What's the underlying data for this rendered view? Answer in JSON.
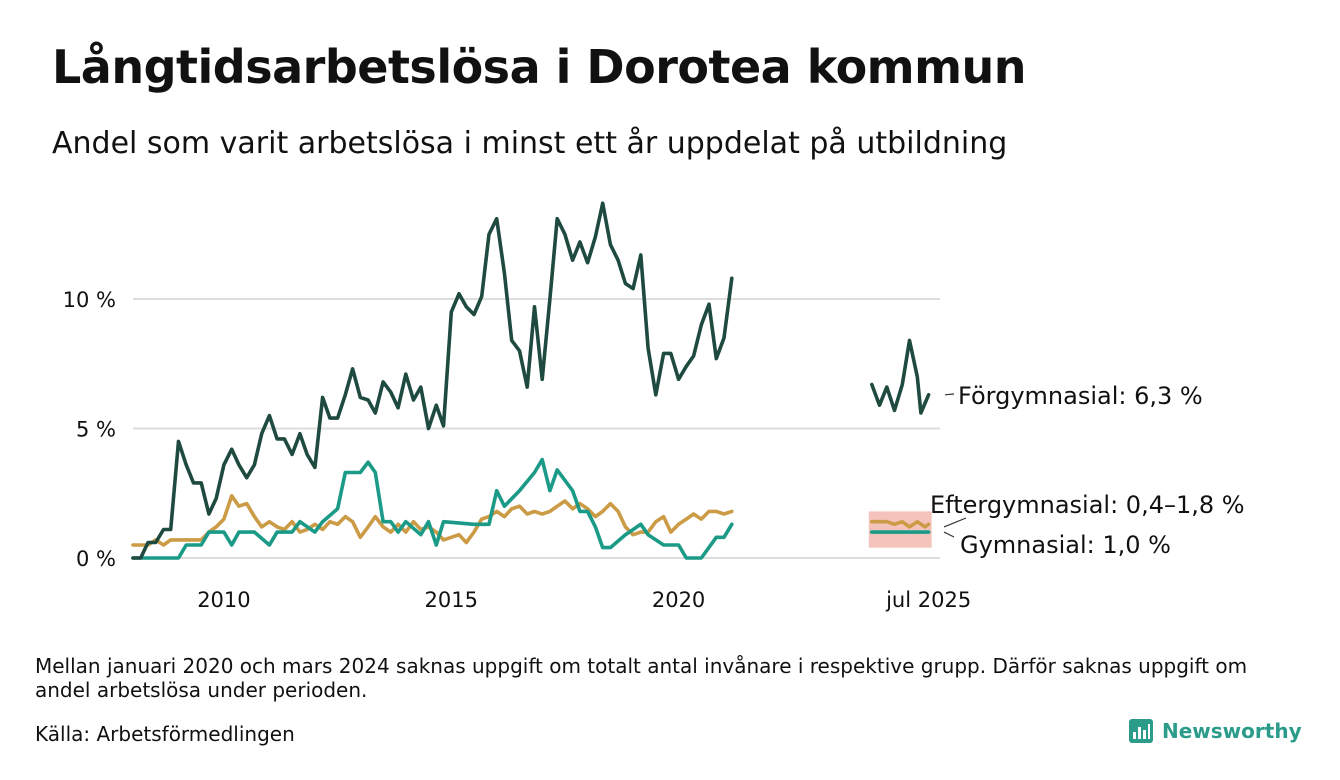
{
  "header": {
    "title": "Långtidsarbetslösa i Dorotea kommun",
    "subtitle": "Andel som varit arbetslösa i minst ett år uppdelat på utbildning"
  },
  "footer": {
    "note": "Mellan januari 2020 och mars 2024 saknas uppgift om totalt antal invånare i respektive grupp. Därför saknas uppgift om andel arbetslösa under perioden.",
    "source": "Källa: Arbetsförmedlingen",
    "brand": "Newsworthy"
  },
  "colors": {
    "forgymnasial": "#1f4a3f",
    "gymnasial": "#1a9a87",
    "eftergymnasial": "#cc9b46",
    "range_band": "#f2b8b0",
    "grid": "#dddddd",
    "brand": "#2b9c8a"
  },
  "chart_data": {
    "type": "line",
    "title": "Långtidsarbetslösa i Dorotea kommun",
    "subtitle": "Andel som varit arbetslösa i minst ett år uppdelat på utbildning",
    "y_unit": "%",
    "ylim": [
      0,
      14
    ],
    "yticks": [
      {
        "value": 0,
        "label": "0 %"
      },
      {
        "value": 5,
        "label": "5 %"
      },
      {
        "value": 10,
        "label": "10 %"
      }
    ],
    "xticks": [
      {
        "value": 2010,
        "label": "2010"
      },
      {
        "value": 2015,
        "label": "2015"
      },
      {
        "value": 2020,
        "label": "2020"
      },
      {
        "value": 2025.5,
        "label": "jul 2025"
      }
    ],
    "xlim": [
      2008.0,
      2025.75
    ],
    "grid": "horizontal",
    "legend": "end-of-line labels",
    "end_labels": [
      {
        "series": "Förgymnasial",
        "text": "Förgymnasial: 6,3 %"
      },
      {
        "series": "Eftergymnasial",
        "text": "Eftergymnasial: 0,4–1,8 %"
      },
      {
        "series": "Gymnasial",
        "text": "Gymnasial: 1,0 %"
      }
    ],
    "range_band": {
      "series": "Eftergymnasial",
      "x": [
        2024.25,
        2025.5
      ],
      "y": [
        0.4,
        1.8
      ]
    },
    "series": [
      {
        "name": "Förgymnasial",
        "segments": [
          [
            [
              2008.0,
              0
            ],
            [
              2008.17,
              0
            ],
            [
              2008.33,
              0.6
            ],
            [
              2008.5,
              0.6
            ],
            [
              2008.67,
              1.1
            ],
            [
              2008.83,
              1.1
            ],
            [
              2009.0,
              4.5
            ],
            [
              2009.17,
              3.6
            ],
            [
              2009.33,
              2.9
            ],
            [
              2009.5,
              2.9
            ],
            [
              2009.67,
              1.7
            ],
            [
              2009.83,
              2.3
            ],
            [
              2010.0,
              3.6
            ],
            [
              2010.17,
              4.2
            ],
            [
              2010.33,
              3.6
            ],
            [
              2010.5,
              3.1
            ],
            [
              2010.67,
              3.6
            ],
            [
              2010.83,
              4.8
            ],
            [
              2011.0,
              5.5
            ],
            [
              2011.17,
              4.6
            ],
            [
              2011.33,
              4.6
            ],
            [
              2011.5,
              4.0
            ],
            [
              2011.67,
              4.8
            ],
            [
              2011.83,
              4.0
            ],
            [
              2012.0,
              3.5
            ],
            [
              2012.17,
              6.2
            ],
            [
              2012.33,
              5.4
            ],
            [
              2012.5,
              5.4
            ],
            [
              2012.67,
              6.3
            ],
            [
              2012.83,
              7.3
            ],
            [
              2013.0,
              6.2
            ],
            [
              2013.17,
              6.1
            ],
            [
              2013.33,
              5.6
            ],
            [
              2013.5,
              6.8
            ],
            [
              2013.67,
              6.4
            ],
            [
              2013.83,
              5.8
            ],
            [
              2014.0,
              7.1
            ],
            [
              2014.17,
              6.1
            ],
            [
              2014.33,
              6.6
            ],
            [
              2014.5,
              5.0
            ],
            [
              2014.67,
              5.9
            ],
            [
              2014.83,
              5.1
            ],
            [
              2015.0,
              9.5
            ],
            [
              2015.17,
              10.2
            ],
            [
              2015.33,
              9.7
            ],
            [
              2015.5,
              9.4
            ],
            [
              2015.67,
              10.1
            ],
            [
              2015.83,
              12.5
            ],
            [
              2016.0,
              13.1
            ],
            [
              2016.17,
              11.0
            ],
            [
              2016.33,
              8.4
            ],
            [
              2016.5,
              8.0
            ],
            [
              2016.67,
              6.6
            ],
            [
              2016.83,
              9.7
            ],
            [
              2017.0,
              6.9
            ],
            [
              2017.17,
              10.0
            ],
            [
              2017.33,
              13.1
            ],
            [
              2017.5,
              12.5
            ],
            [
              2017.67,
              11.5
            ],
            [
              2017.83,
              12.2
            ],
            [
              2018.0,
              11.4
            ],
            [
              2018.17,
              12.4
            ],
            [
              2018.33,
              13.7
            ],
            [
              2018.5,
              12.1
            ],
            [
              2018.67,
              11.5
            ],
            [
              2018.83,
              10.6
            ],
            [
              2019.0,
              10.4
            ],
            [
              2019.17,
              11.7
            ],
            [
              2019.33,
              8.1
            ],
            [
              2019.5,
              6.3
            ],
            [
              2019.67,
              7.9
            ],
            [
              2019.83,
              7.9
            ],
            [
              2020.0,
              6.9
            ],
            [
              2020.17,
              7.4
            ],
            [
              2020.33,
              7.8
            ],
            [
              2020.5,
              9.0
            ],
            [
              2020.67,
              9.8
            ],
            [
              2020.83,
              7.7
            ],
            [
              2021.0,
              8.5
            ],
            [
              2021.17,
              10.8
            ]
          ],
          [
            [
              2024.25,
              6.7
            ],
            [
              2024.42,
              5.9
            ],
            [
              2024.58,
              6.6
            ],
            [
              2024.75,
              5.7
            ],
            [
              2024.92,
              6.7
            ],
            [
              2025.08,
              8.4
            ],
            [
              2025.25,
              7.0
            ],
            [
              2025.33,
              5.6
            ],
            [
              2025.5,
              6.3
            ]
          ]
        ]
      },
      {
        "name": "Gymnasial",
        "segments": [
          [
            [
              2008.0,
              0
            ],
            [
              2008.5,
              0
            ],
            [
              2009.0,
              0
            ],
            [
              2009.17,
              0.5
            ],
            [
              2009.5,
              0.5
            ],
            [
              2009.67,
              1.0
            ],
            [
              2010.0,
              1.0
            ],
            [
              2010.17,
              0.5
            ],
            [
              2010.33,
              1.0
            ],
            [
              2010.67,
              1.0
            ],
            [
              2011.0,
              0.5
            ],
            [
              2011.17,
              1.0
            ],
            [
              2011.5,
              1.0
            ],
            [
              2011.67,
              1.4
            ],
            [
              2012.0,
              1.0
            ],
            [
              2012.17,
              1.4
            ],
            [
              2012.5,
              1.9
            ],
            [
              2012.67,
              3.3
            ],
            [
              2013.0,
              3.3
            ],
            [
              2013.17,
              3.7
            ],
            [
              2013.33,
              3.3
            ],
            [
              2013.5,
              1.4
            ],
            [
              2013.67,
              1.4
            ],
            [
              2013.83,
              1.0
            ],
            [
              2014.0,
              1.4
            ],
            [
              2014.33,
              0.9
            ],
            [
              2014.5,
              1.4
            ],
            [
              2014.67,
              0.5
            ],
            [
              2014.83,
              1.4
            ],
            [
              2015.5,
              1.3
            ],
            [
              2015.83,
              1.3
            ],
            [
              2016.0,
              2.6
            ],
            [
              2016.17,
              2.0
            ],
            [
              2016.5,
              2.6
            ],
            [
              2016.83,
              3.3
            ],
            [
              2017.0,
              3.8
            ],
            [
              2017.17,
              2.6
            ],
            [
              2017.33,
              3.4
            ],
            [
              2017.67,
              2.6
            ],
            [
              2017.83,
              1.8
            ],
            [
              2018.0,
              1.8
            ],
            [
              2018.17,
              1.2
            ],
            [
              2018.33,
              0.4
            ],
            [
              2018.5,
              0.4
            ],
            [
              2018.83,
              0.9
            ],
            [
              2019.17,
              1.3
            ],
            [
              2019.33,
              0.9
            ],
            [
              2019.67,
              0.5
            ],
            [
              2020.0,
              0.5
            ],
            [
              2020.17,
              0
            ],
            [
              2020.5,
              0
            ],
            [
              2020.83,
              0.8
            ],
            [
              2021.0,
              0.8
            ],
            [
              2021.17,
              1.3
            ]
          ],
          [
            [
              2024.25,
              1.0
            ],
            [
              2024.75,
              1.0
            ],
            [
              2025.0,
              1.0
            ],
            [
              2025.25,
              1.0
            ],
            [
              2025.5,
              1.0
            ]
          ]
        ]
      },
      {
        "name": "Eftergymnasial",
        "segments": [
          [
            [
              2008.0,
              0.5
            ],
            [
              2008.17,
              0.5
            ],
            [
              2008.33,
              0.5
            ],
            [
              2008.5,
              0.7
            ],
            [
              2008.67,
              0.5
            ],
            [
              2008.83,
              0.7
            ],
            [
              2009.0,
              0.7
            ],
            [
              2009.17,
              0.7
            ],
            [
              2009.33,
              0.7
            ],
            [
              2009.5,
              0.7
            ],
            [
              2009.67,
              1.0
            ],
            [
              2009.83,
              1.2
            ],
            [
              2010.0,
              1.5
            ],
            [
              2010.17,
              2.4
            ],
            [
              2010.33,
              2.0
            ],
            [
              2010.5,
              2.1
            ],
            [
              2010.67,
              1.6
            ],
            [
              2010.83,
              1.2
            ],
            [
              2011.0,
              1.4
            ],
            [
              2011.17,
              1.2
            ],
            [
              2011.33,
              1.1
            ],
            [
              2011.5,
              1.4
            ],
            [
              2011.67,
              1.0
            ],
            [
              2011.83,
              1.1
            ],
            [
              2012.0,
              1.3
            ],
            [
              2012.17,
              1.1
            ],
            [
              2012.33,
              1.4
            ],
            [
              2012.5,
              1.3
            ],
            [
              2012.67,
              1.6
            ],
            [
              2012.83,
              1.4
            ],
            [
              2013.0,
              0.8
            ],
            [
              2013.17,
              1.2
            ],
            [
              2013.33,
              1.6
            ],
            [
              2013.5,
              1.2
            ],
            [
              2013.67,
              1.0
            ],
            [
              2013.83,
              1.3
            ],
            [
              2014.0,
              1.0
            ],
            [
              2014.17,
              1.4
            ],
            [
              2014.33,
              1.1
            ],
            [
              2014.5,
              1.2
            ],
            [
              2014.67,
              1.0
            ],
            [
              2014.83,
              0.7
            ],
            [
              2015.0,
              0.8
            ],
            [
              2015.17,
              0.9
            ],
            [
              2015.33,
              0.6
            ],
            [
              2015.5,
              1.0
            ],
            [
              2015.67,
              1.5
            ],
            [
              2015.83,
              1.6
            ],
            [
              2016.0,
              1.8
            ],
            [
              2016.17,
              1.6
            ],
            [
              2016.33,
              1.9
            ],
            [
              2016.5,
              2.0
            ],
            [
              2016.67,
              1.7
            ],
            [
              2016.83,
              1.8
            ],
            [
              2017.0,
              1.7
            ],
            [
              2017.17,
              1.8
            ],
            [
              2017.33,
              2.0
            ],
            [
              2017.5,
              2.2
            ],
            [
              2017.67,
              1.9
            ],
            [
              2017.83,
              2.1
            ],
            [
              2018.0,
              1.9
            ],
            [
              2018.17,
              1.6
            ],
            [
              2018.33,
              1.8
            ],
            [
              2018.5,
              2.1
            ],
            [
              2018.67,
              1.8
            ],
            [
              2018.83,
              1.2
            ],
            [
              2019.0,
              0.9
            ],
            [
              2019.17,
              1.0
            ],
            [
              2019.33,
              1.0
            ],
            [
              2019.5,
              1.4
            ],
            [
              2019.67,
              1.6
            ],
            [
              2019.83,
              1.0
            ],
            [
              2020.0,
              1.3
            ],
            [
              2020.17,
              1.5
            ],
            [
              2020.33,
              1.7
            ],
            [
              2020.5,
              1.5
            ],
            [
              2020.67,
              1.8
            ],
            [
              2020.83,
              1.8
            ],
            [
              2021.0,
              1.7
            ],
            [
              2021.17,
              1.8
            ]
          ],
          [
            [
              2024.25,
              1.4
            ],
            [
              2024.42,
              1.4
            ],
            [
              2024.58,
              1.4
            ],
            [
              2024.75,
              1.3
            ],
            [
              2024.92,
              1.4
            ],
            [
              2025.08,
              1.2
            ],
            [
              2025.25,
              1.4
            ],
            [
              2025.42,
              1.2
            ],
            [
              2025.5,
              1.3
            ]
          ]
        ]
      }
    ]
  }
}
